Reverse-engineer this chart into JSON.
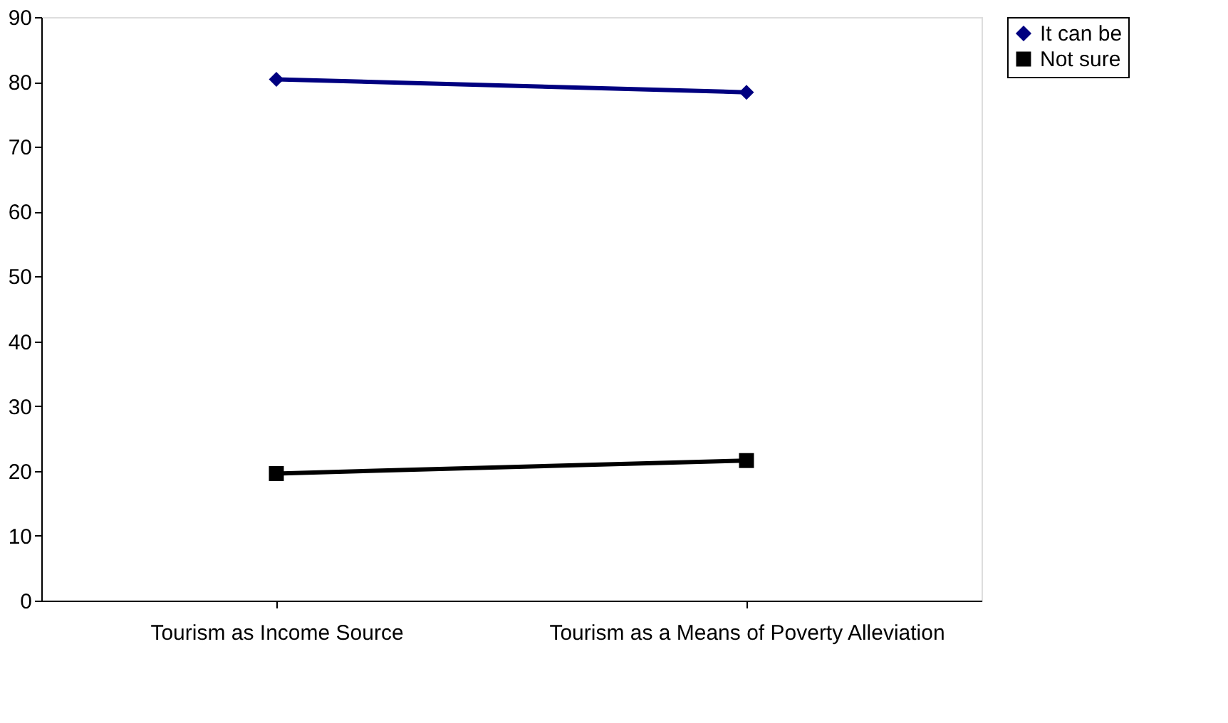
{
  "chart_data": {
    "type": "line",
    "categories": [
      "Tourism as Income Source",
      "Tourism as a Means of Poverty Alleviation"
    ],
    "series": [
      {
        "name": "It can be",
        "color": "#000080",
        "marker": "diamond",
        "values": [
          80.4,
          78.4
        ]
      },
      {
        "name": "Not sure",
        "color": "#000000",
        "marker": "square",
        "values": [
          19.6,
          21.6
        ]
      }
    ],
    "ylim": [
      0,
      90
    ],
    "yticks": [
      0,
      10,
      20,
      30,
      40,
      50,
      60,
      70,
      80,
      90
    ],
    "grid": false,
    "legend": "right"
  }
}
